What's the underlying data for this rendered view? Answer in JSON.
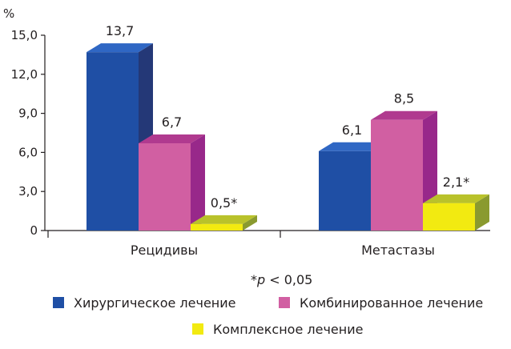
{
  "chart_data": {
    "type": "bar",
    "ylabel": "%",
    "ylim": [
      0,
      15
    ],
    "yticks": [
      "0",
      "3,0",
      "6,0",
      "9,0",
      "12,0",
      "15,0"
    ],
    "categories": [
      "Рецидивы",
      "Метастазы"
    ],
    "series": [
      {
        "name": "Хирургическое лечение",
        "values": [
          13.7,
          6.1
        ],
        "labels": [
          "13,7",
          "6,1"
        ],
        "color": "#1f4fa5",
        "side": "#243877",
        "top": "#2f67c4"
      },
      {
        "name": "Комбинированное лечение",
        "values": [
          6.7,
          8.5
        ],
        "labels": [
          "6,7",
          "8,5"
        ],
        "color": "#d15fa2",
        "side": "#98288a",
        "top": "#b03a8f"
      },
      {
        "name": "Комплексное лечение",
        "values": [
          0.5,
          2.1
        ],
        "labels": [
          "0,5*",
          "2,1*"
        ],
        "color": "#f2ea11",
        "side": "#8a9a2f",
        "top": "#b9c22b"
      }
    ],
    "footnote_star": "*",
    "footnote_p": "p",
    "footnote_rest": " < 0,05",
    "grid": false,
    "legend_position": "bottom"
  }
}
